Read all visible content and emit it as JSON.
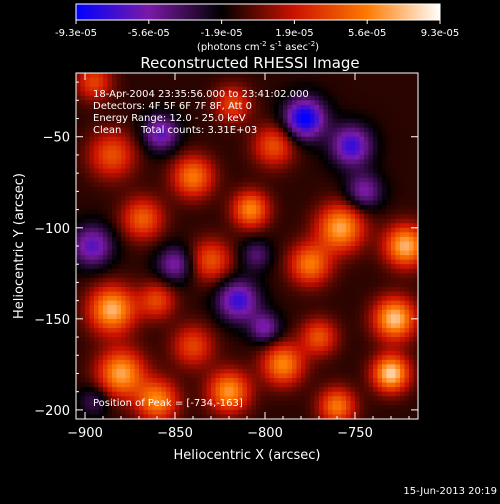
{
  "chart_data": {
    "type": "heatmap",
    "title": "Reconstructed RHESSI Image",
    "xlabel": "Heliocentric X (arcsec)",
    "ylabel": "Heliocentric Y (arcsec)",
    "xlim": [
      -905,
      -715
    ],
    "ylim": [
      -205,
      -15
    ],
    "x_ticks": [
      -900,
      -850,
      -800,
      -750
    ],
    "y_ticks": [
      -50,
      -100,
      -150,
      -200
    ],
    "colorbar": {
      "range": [
        -9.3e-05,
        9.3e-05
      ],
      "tick_labels": [
        "-9.3e-05",
        "-5.6e-05",
        "-1.9e-05",
        "1.9e-05",
        "5.6e-05",
        "9.3e-05"
      ],
      "unit_label": "(photons cm",
      "unit_sup1": "-2",
      "unit_mid": " s",
      "unit_sup2": "-1",
      "unit_mid2": " asec",
      "unit_sup3": "-2",
      "unit_end": ")",
      "colors": [
        "#0000ff",
        "#7a1aa6",
        "#000000",
        "#cc1200",
        "#ff7a00",
        "#ffffff"
      ]
    },
    "annotations": {
      "line1": "18-Apr-2004 23:35:56.000 to 23:41:02.000",
      "line2": "Detectors: 4F 5F 6F 7F 8F, Att 0",
      "line3": "Energy Range: 12.0 - 25.0 keV",
      "line4_method": "Clean",
      "line4_counts": "Total counts: 3.31E+03",
      "peak_label": "Position of Peak = [-734,-163]"
    },
    "peak": {
      "x": -734,
      "y": -163
    },
    "sources": [
      {
        "x": -885,
        "y": -60,
        "a": 0.55,
        "s": 9
      },
      {
        "x": -868,
        "y": -95,
        "a": 0.6,
        "s": 8
      },
      {
        "x": -840,
        "y": -72,
        "a": 0.7,
        "s": 8
      },
      {
        "x": -830,
        "y": -118,
        "a": 0.55,
        "s": 8
      },
      {
        "x": -808,
        "y": -90,
        "a": 0.75,
        "s": 7
      },
      {
        "x": -818,
        "y": -32,
        "a": 0.5,
        "s": 7
      },
      {
        "x": -795,
        "y": -55,
        "a": 0.55,
        "s": 8
      },
      {
        "x": -775,
        "y": -120,
        "a": 0.7,
        "s": 8
      },
      {
        "x": -758,
        "y": -100,
        "a": 0.85,
        "s": 9
      },
      {
        "x": -722,
        "y": -110,
        "a": 0.9,
        "s": 8
      },
      {
        "x": -728,
        "y": -150,
        "a": 0.95,
        "s": 8
      },
      {
        "x": -730,
        "y": -180,
        "a": 1.0,
        "s": 7
      },
      {
        "x": -885,
        "y": -145,
        "a": 0.9,
        "s": 9
      },
      {
        "x": -880,
        "y": -180,
        "a": 0.85,
        "s": 9
      },
      {
        "x": -860,
        "y": -195,
        "a": 0.75,
        "s": 8
      },
      {
        "x": -840,
        "y": -165,
        "a": 0.5,
        "s": 8
      },
      {
        "x": -820,
        "y": -190,
        "a": 0.8,
        "s": 8
      },
      {
        "x": -790,
        "y": -175,
        "a": 0.75,
        "s": 8
      },
      {
        "x": -770,
        "y": -160,
        "a": 0.55,
        "s": 7
      },
      {
        "x": -760,
        "y": -198,
        "a": 0.7,
        "s": 7
      },
      {
        "x": -895,
        "y": -20,
        "a": 0.5,
        "s": 7
      },
      {
        "x": -860,
        "y": -140,
        "a": 0.5,
        "s": 7
      },
      {
        "x": -778,
        "y": -40,
        "a": -0.9,
        "s": 8
      },
      {
        "x": -752,
        "y": -55,
        "a": -0.7,
        "s": 8
      },
      {
        "x": -896,
        "y": -110,
        "a": -0.6,
        "s": 8
      },
      {
        "x": -858,
        "y": -48,
        "a": -0.6,
        "s": 7
      },
      {
        "x": -815,
        "y": -140,
        "a": -0.7,
        "s": 8
      },
      {
        "x": -850,
        "y": -120,
        "a": -0.5,
        "s": 7
      },
      {
        "x": -800,
        "y": -155,
        "a": -0.5,
        "s": 6
      },
      {
        "x": -745,
        "y": -80,
        "a": -0.5,
        "s": 7
      },
      {
        "x": -895,
        "y": -195,
        "a": -0.3,
        "s": 6
      },
      {
        "x": -805,
        "y": -115,
        "a": -0.35,
        "s": 6
      }
    ]
  },
  "footer": {
    "date": "15-Jun-2013 20:19"
  }
}
